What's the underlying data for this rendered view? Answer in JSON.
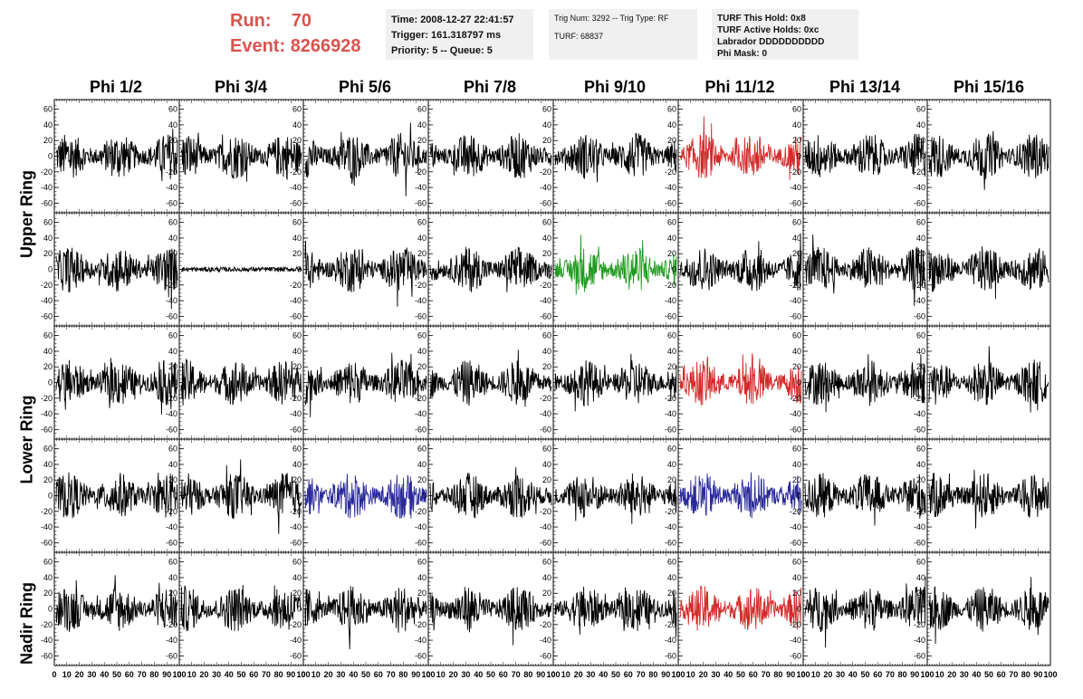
{
  "run": {
    "run_label": "Run:",
    "run_value": "70",
    "event_label": "Event:",
    "event_value": "8266928"
  },
  "info1": {
    "time": "Time: 2008-12-27 22:41:57",
    "trigger": "Trigger: 161.318797 ms",
    "priority": "Priority: 5 -- Queue: 5"
  },
  "info2": {
    "trig": "Trig Num: 3292 -- Trig Type: RF",
    "turf": "TURF: 68837"
  },
  "info3": {
    "hold": "TURF This Hold: 0x8",
    "active": "TURF Active Holds: 0xc",
    "labrador": "Labrador DDDDDDDDDD",
    "phimask": "Phi Mask: 0"
  },
  "columns": [
    "Phi 1/2",
    "Phi 3/4",
    "Phi 5/6",
    "Phi 7/8",
    "Phi 9/10",
    "Phi 11/12",
    "Phi 13/14",
    "Phi 15/16"
  ],
  "rows": [
    "Upper Ring",
    "Lower Ring",
    "Nadir Ring"
  ],
  "y_ticks": [
    "60",
    "40",
    "20",
    "0",
    "-20",
    "-40",
    "-60"
  ],
  "x_ticks": [
    "0",
    "10",
    "20",
    "30",
    "40",
    "50",
    "60",
    "70",
    "80",
    "90",
    "100"
  ],
  "colors": {
    "default": "#000000",
    "red": "#d42a2a",
    "green": "#1f9a1f",
    "blue": "#2a2a9a",
    "title": "#d9534f"
  },
  "highlights": [
    {
      "row": 0,
      "col": 5,
      "color": "red"
    },
    {
      "row": 1,
      "col": 4,
      "color": "green"
    },
    {
      "row": 2,
      "col": 5,
      "color": "red"
    },
    {
      "row": 3,
      "col": 2,
      "color": "blue"
    },
    {
      "row": 3,
      "col": 5,
      "color": "blue"
    },
    {
      "row": 4,
      "col": 5,
      "color": "red"
    }
  ],
  "quiet_panels": [
    {
      "row": 1,
      "col": 1
    }
  ]
}
